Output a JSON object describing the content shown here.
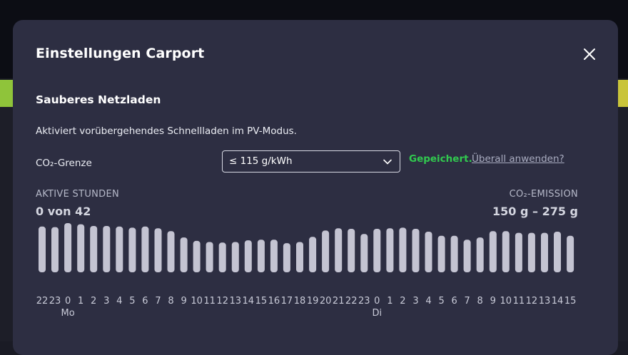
{
  "modal": {
    "title": "Einstellungen Carport",
    "close_icon": "close-icon"
  },
  "section": {
    "title": "Sauberes Netzladen",
    "description": "Aktiviert vorübergehendes Schnellladen im PV-Modus."
  },
  "co2_limit": {
    "label": "CO₂-Grenze",
    "selected": "≤ 115 g/kWh",
    "saved_text": "Gepeichert.",
    "apply_all_link": "Überall anwenden?"
  },
  "stats": {
    "active_hours_label": "AKTIVE STUNDEN",
    "active_hours_value": "0 von 42",
    "emission_label": "CO₂-EMISSION",
    "emission_value": "150 g – 275 g"
  },
  "chart_data": {
    "type": "bar",
    "categories": [
      "22",
      "23",
      "0",
      "1",
      "2",
      "3",
      "4",
      "5",
      "6",
      "7",
      "8",
      "9",
      "10",
      "11",
      "12",
      "13",
      "14",
      "15",
      "16",
      "17",
      "18",
      "19",
      "20",
      "21",
      "22",
      "23",
      "0",
      "1",
      "2",
      "3",
      "4",
      "5",
      "6",
      "7",
      "8",
      "9",
      "10",
      "11",
      "12",
      "13",
      "14",
      "15"
    ],
    "values": [
      80,
      79,
      86,
      84,
      81,
      81,
      80,
      78,
      80,
      77,
      72,
      61,
      55,
      53,
      52,
      53,
      56,
      57,
      57,
      51,
      53,
      62,
      73,
      77,
      76,
      67,
      76,
      77,
      78,
      76,
      71,
      64,
      64,
      57,
      61,
      72,
      72,
      69,
      69,
      69,
      71,
      64
    ],
    "day_labels": [
      {
        "index": 2,
        "label": "Mo"
      },
      {
        "index": 26,
        "label": "Di"
      }
    ],
    "ylim": [
      0,
      100
    ],
    "bar_color": "#c4c4d2"
  }
}
